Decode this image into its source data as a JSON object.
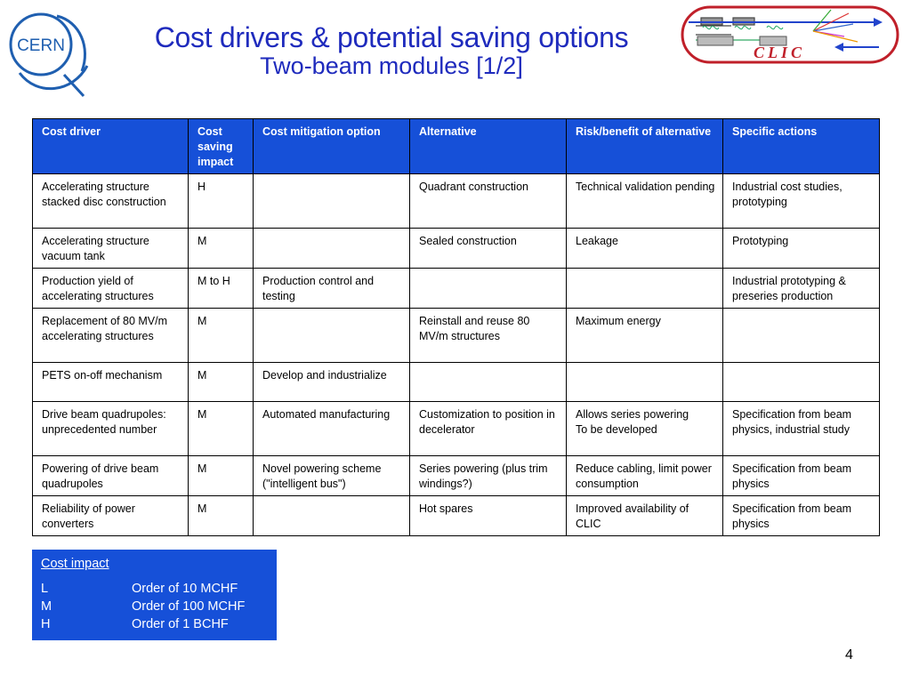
{
  "logos": {
    "left_text": "CERN",
    "right_text": "CLIC"
  },
  "title": {
    "main": "Cost drivers & potential saving options",
    "sub": "Two-beam modules [1/2]"
  },
  "table": {
    "headers": [
      "Cost driver",
      "Cost saving impact",
      "Cost mitigation option",
      "Alternative",
      "Risk/benefit of alternative",
      "Specific actions"
    ],
    "rows": [
      [
        "Accelerating structure stacked disc construction",
        "H",
        "",
        "Quadrant construction",
        "Technical validation pending",
        "Industrial cost studies, prototyping"
      ],
      [
        "Accelerating structure vacuum tank",
        "M",
        "",
        "Sealed construction",
        "Leakage",
        "Prototyping"
      ],
      [
        "Production yield of accelerating structures",
        "M to H",
        "Production control and testing",
        "",
        "",
        "Industrial prototyping & preseries production"
      ],
      [
        "Replacement of 80 MV/m accelerating structures",
        "M",
        "",
        "Reinstall and reuse 80 MV/m structures",
        "Maximum energy",
        ""
      ],
      [
        "PETS on-off mechanism",
        "M",
        "Develop and industrialize",
        "",
        "",
        ""
      ],
      [
        "Drive beam quadrupoles: unprecedented number",
        "M",
        "Automated manufacturing",
        "Customization to position in decelerator",
        "Allows series powering\nTo be developed",
        "Specification from beam physics, industrial study"
      ],
      [
        "Powering of drive beam quadrupoles",
        "M",
        "Novel powering scheme (\"intelligent bus\")",
        "Series powering (plus trim windings?)",
        "Reduce cabling, limit power consumption",
        "Specification from beam physics"
      ],
      [
        "Reliability of power converters",
        "M",
        "",
        "Hot spares",
        "Improved availability of CLIC",
        "Specification from beam physics"
      ]
    ]
  },
  "legend": {
    "title": "Cost impact",
    "items": [
      {
        "key": "L",
        "value": "Order of 10 MCHF"
      },
      {
        "key": "M",
        "value": "Order of 100 MCHF"
      },
      {
        "key": "H",
        "value": "Order of 1 BCHF"
      }
    ]
  },
  "page_number": "4",
  "colors": {
    "title_blue": "#1f2bbd",
    "header_blue": "#1650d8",
    "clic_red": "#c0202a"
  }
}
